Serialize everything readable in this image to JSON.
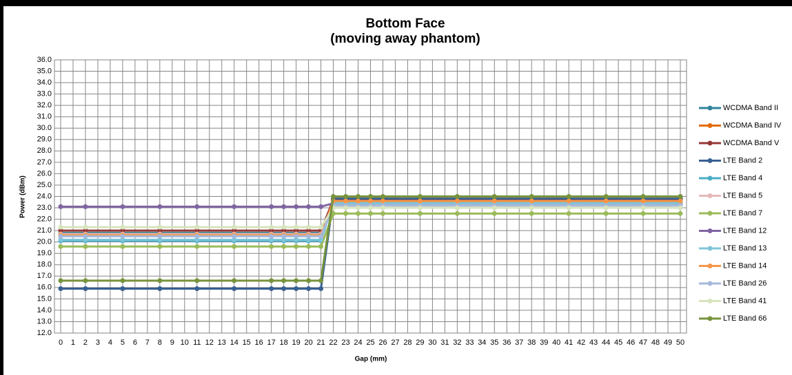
{
  "chart_data": {
    "type": "line",
    "title": "Bottom Face",
    "subtitle": "(moving away phantom)",
    "x_label": "Gap (mm)",
    "y_label": "Power (dBm)",
    "x": [
      0,
      2,
      5,
      8,
      11,
      14,
      17,
      18,
      19,
      20,
      21,
      22,
      23,
      24,
      25,
      26,
      29,
      32,
      35,
      38,
      41,
      44,
      47,
      50
    ],
    "xlim": [
      0,
      50
    ],
    "xticks": [
      0,
      1,
      2,
      3,
      4,
      5,
      6,
      7,
      8,
      9,
      10,
      11,
      12,
      13,
      14,
      15,
      16,
      17,
      18,
      19,
      20,
      21,
      22,
      23,
      24,
      25,
      26,
      27,
      28,
      29,
      30,
      31,
      32,
      33,
      34,
      35,
      36,
      37,
      38,
      39,
      40,
      41,
      42,
      43,
      44,
      45,
      46,
      47,
      48,
      49,
      50
    ],
    "ylim": [
      12,
      36
    ],
    "yticks": [
      {
        "value": 12,
        "label": "12.0"
      },
      {
        "value": 13,
        "label": "13.0"
      },
      {
        "value": 14,
        "label": "14.0"
      },
      {
        "value": 15,
        "label": "15.0"
      },
      {
        "value": 16,
        "label": "16.0"
      },
      {
        "value": 17,
        "label": "17.0"
      },
      {
        "value": 18,
        "label": "18.0"
      },
      {
        "value": 19,
        "label": "19.0"
      },
      {
        "value": 20,
        "label": "20.0"
      },
      {
        "value": 21,
        "label": "21.0"
      },
      {
        "value": 22,
        "label": "22.0"
      },
      {
        "value": 23,
        "label": "23.0"
      },
      {
        "value": 24,
        "label": "24.0"
      },
      {
        "value": 25,
        "label": "25.0"
      },
      {
        "value": 26,
        "label": "26.0"
      },
      {
        "value": 27,
        "label": "27.0"
      },
      {
        "value": 28,
        "label": "28.0"
      },
      {
        "value": 29,
        "label": "29.0"
      },
      {
        "value": 30,
        "label": "30.0"
      },
      {
        "value": 31,
        "label": "31.0"
      },
      {
        "value": 32,
        "label": "32.0"
      },
      {
        "value": 33,
        "label": "33.0"
      },
      {
        "value": 34,
        "label": "34.0"
      },
      {
        "value": 35,
        "label": "35.0"
      },
      {
        "value": 36,
        "label": "36.0"
      }
    ],
    "grid": true,
    "legend": "right",
    "series": [
      {
        "name": "WCDMA Band II",
        "color": "#31849b",
        "values": [
          20.8,
          20.8,
          20.8,
          20.8,
          20.8,
          20.8,
          20.8,
          20.8,
          20.8,
          20.8,
          20.8,
          23.5,
          23.5,
          23.5,
          23.5,
          23.5,
          23.5,
          23.5,
          23.5,
          23.5,
          23.5,
          23.5,
          23.5,
          23.5
        ]
      },
      {
        "name": "WCDMA Band IV",
        "color": "#e46c0a",
        "values": [
          20.7,
          20.7,
          20.7,
          20.7,
          20.7,
          20.7,
          20.7,
          20.7,
          20.7,
          20.7,
          20.7,
          23.8,
          23.8,
          23.8,
          23.8,
          23.8,
          23.8,
          23.8,
          23.8,
          23.8,
          23.8,
          23.8,
          23.8,
          23.8
        ]
      },
      {
        "name": "WCDMA Band V",
        "color": "#953735",
        "values": [
          21.0,
          21.0,
          21.0,
          21.0,
          21.0,
          21.0,
          21.0,
          21.0,
          21.0,
          21.0,
          21.0,
          23.7,
          23.7,
          23.7,
          23.7,
          23.7,
          23.7,
          23.7,
          23.7,
          23.7,
          23.7,
          23.7,
          23.7,
          23.7
        ]
      },
      {
        "name": "LTE Band 2",
        "color": "#376092",
        "values": [
          15.9,
          15.9,
          15.9,
          15.9,
          15.9,
          15.9,
          15.9,
          15.9,
          15.9,
          15.9,
          15.9,
          23.8,
          23.8,
          23.8,
          23.8,
          23.8,
          23.8,
          23.8,
          23.8,
          23.8,
          23.8,
          23.8,
          23.8,
          23.8
        ]
      },
      {
        "name": "LTE Band 4",
        "color": "#4bacc6",
        "values": [
          20.1,
          20.1,
          20.1,
          20.1,
          20.1,
          20.1,
          20.1,
          20.1,
          20.1,
          20.1,
          20.1,
          23.5,
          23.5,
          23.5,
          23.5,
          23.5,
          23.5,
          23.5,
          23.5,
          23.5,
          23.5,
          23.5,
          23.5,
          23.5
        ]
      },
      {
        "name": "LTE Band 5",
        "color": "#e6b9b8",
        "values": [
          20.7,
          20.7,
          20.7,
          20.7,
          20.7,
          20.7,
          20.7,
          20.7,
          20.7,
          20.7,
          20.7,
          23.3,
          23.3,
          23.3,
          23.3,
          23.3,
          23.3,
          23.3,
          23.3,
          23.3,
          23.3,
          23.3,
          23.3,
          23.3
        ]
      },
      {
        "name": "LTE Band 7",
        "color": "#9bbb59",
        "values": [
          19.6,
          19.6,
          19.6,
          19.6,
          19.6,
          19.6,
          19.6,
          19.6,
          19.6,
          19.6,
          19.6,
          22.5,
          22.5,
          22.5,
          22.5,
          22.5,
          22.5,
          22.5,
          22.5,
          22.5,
          22.5,
          22.5,
          22.5,
          22.5
        ]
      },
      {
        "name": "LTE Band 12",
        "color": "#8064a2",
        "values": [
          23.1,
          23.1,
          23.1,
          23.1,
          23.1,
          23.1,
          23.1,
          23.1,
          23.1,
          23.1,
          23.1,
          23.4,
          23.4,
          23.4,
          23.4,
          23.4,
          23.4,
          23.4,
          23.4,
          23.4,
          23.4,
          23.4,
          23.4,
          23.4
        ]
      },
      {
        "name": "LTE Band 13",
        "color": "#7fc5d9",
        "values": [
          20.2,
          20.2,
          20.2,
          20.2,
          20.2,
          20.2,
          20.2,
          20.2,
          20.2,
          20.2,
          20.2,
          23.4,
          23.4,
          23.4,
          23.4,
          23.4,
          23.4,
          23.4,
          23.4,
          23.4,
          23.4,
          23.4,
          23.4,
          23.4
        ]
      },
      {
        "name": "LTE Band 14",
        "color": "#f79646",
        "values": [
          20.6,
          20.6,
          20.6,
          20.6,
          20.6,
          20.6,
          20.6,
          20.6,
          20.6,
          20.6,
          20.6,
          23.6,
          23.6,
          23.6,
          23.6,
          23.6,
          23.6,
          23.6,
          23.6,
          23.6,
          23.6,
          23.6,
          23.6,
          23.6
        ]
      },
      {
        "name": "LTE Band 26",
        "color": "#a6b8dc",
        "values": [
          20.5,
          20.5,
          20.5,
          20.5,
          20.5,
          20.5,
          20.5,
          20.5,
          20.5,
          20.5,
          20.5,
          23.2,
          23.2,
          23.2,
          23.2,
          23.2,
          23.2,
          23.2,
          23.2,
          23.2,
          23.2,
          23.2,
          23.2,
          23.2
        ]
      },
      {
        "name": "LTE Band 41",
        "color": "#d7e4bd",
        "values": [
          21.3,
          21.3,
          21.3,
          21.3,
          21.3,
          21.3,
          21.3,
          21.3,
          21.3,
          21.3,
          21.3,
          23.0,
          23.0,
          23.0,
          23.0,
          23.0,
          23.0,
          23.0,
          23.0,
          23.0,
          23.0,
          23.0,
          23.0,
          23.0
        ]
      },
      {
        "name": "LTE Band 66",
        "color": "#77933c",
        "values": [
          16.6,
          16.6,
          16.6,
          16.6,
          16.6,
          16.6,
          16.6,
          16.6,
          16.6,
          16.6,
          16.6,
          24.0,
          24.0,
          24.0,
          24.0,
          24.0,
          24.0,
          24.0,
          24.0,
          24.0,
          24.0,
          24.0,
          24.0,
          24.0
        ]
      }
    ]
  }
}
